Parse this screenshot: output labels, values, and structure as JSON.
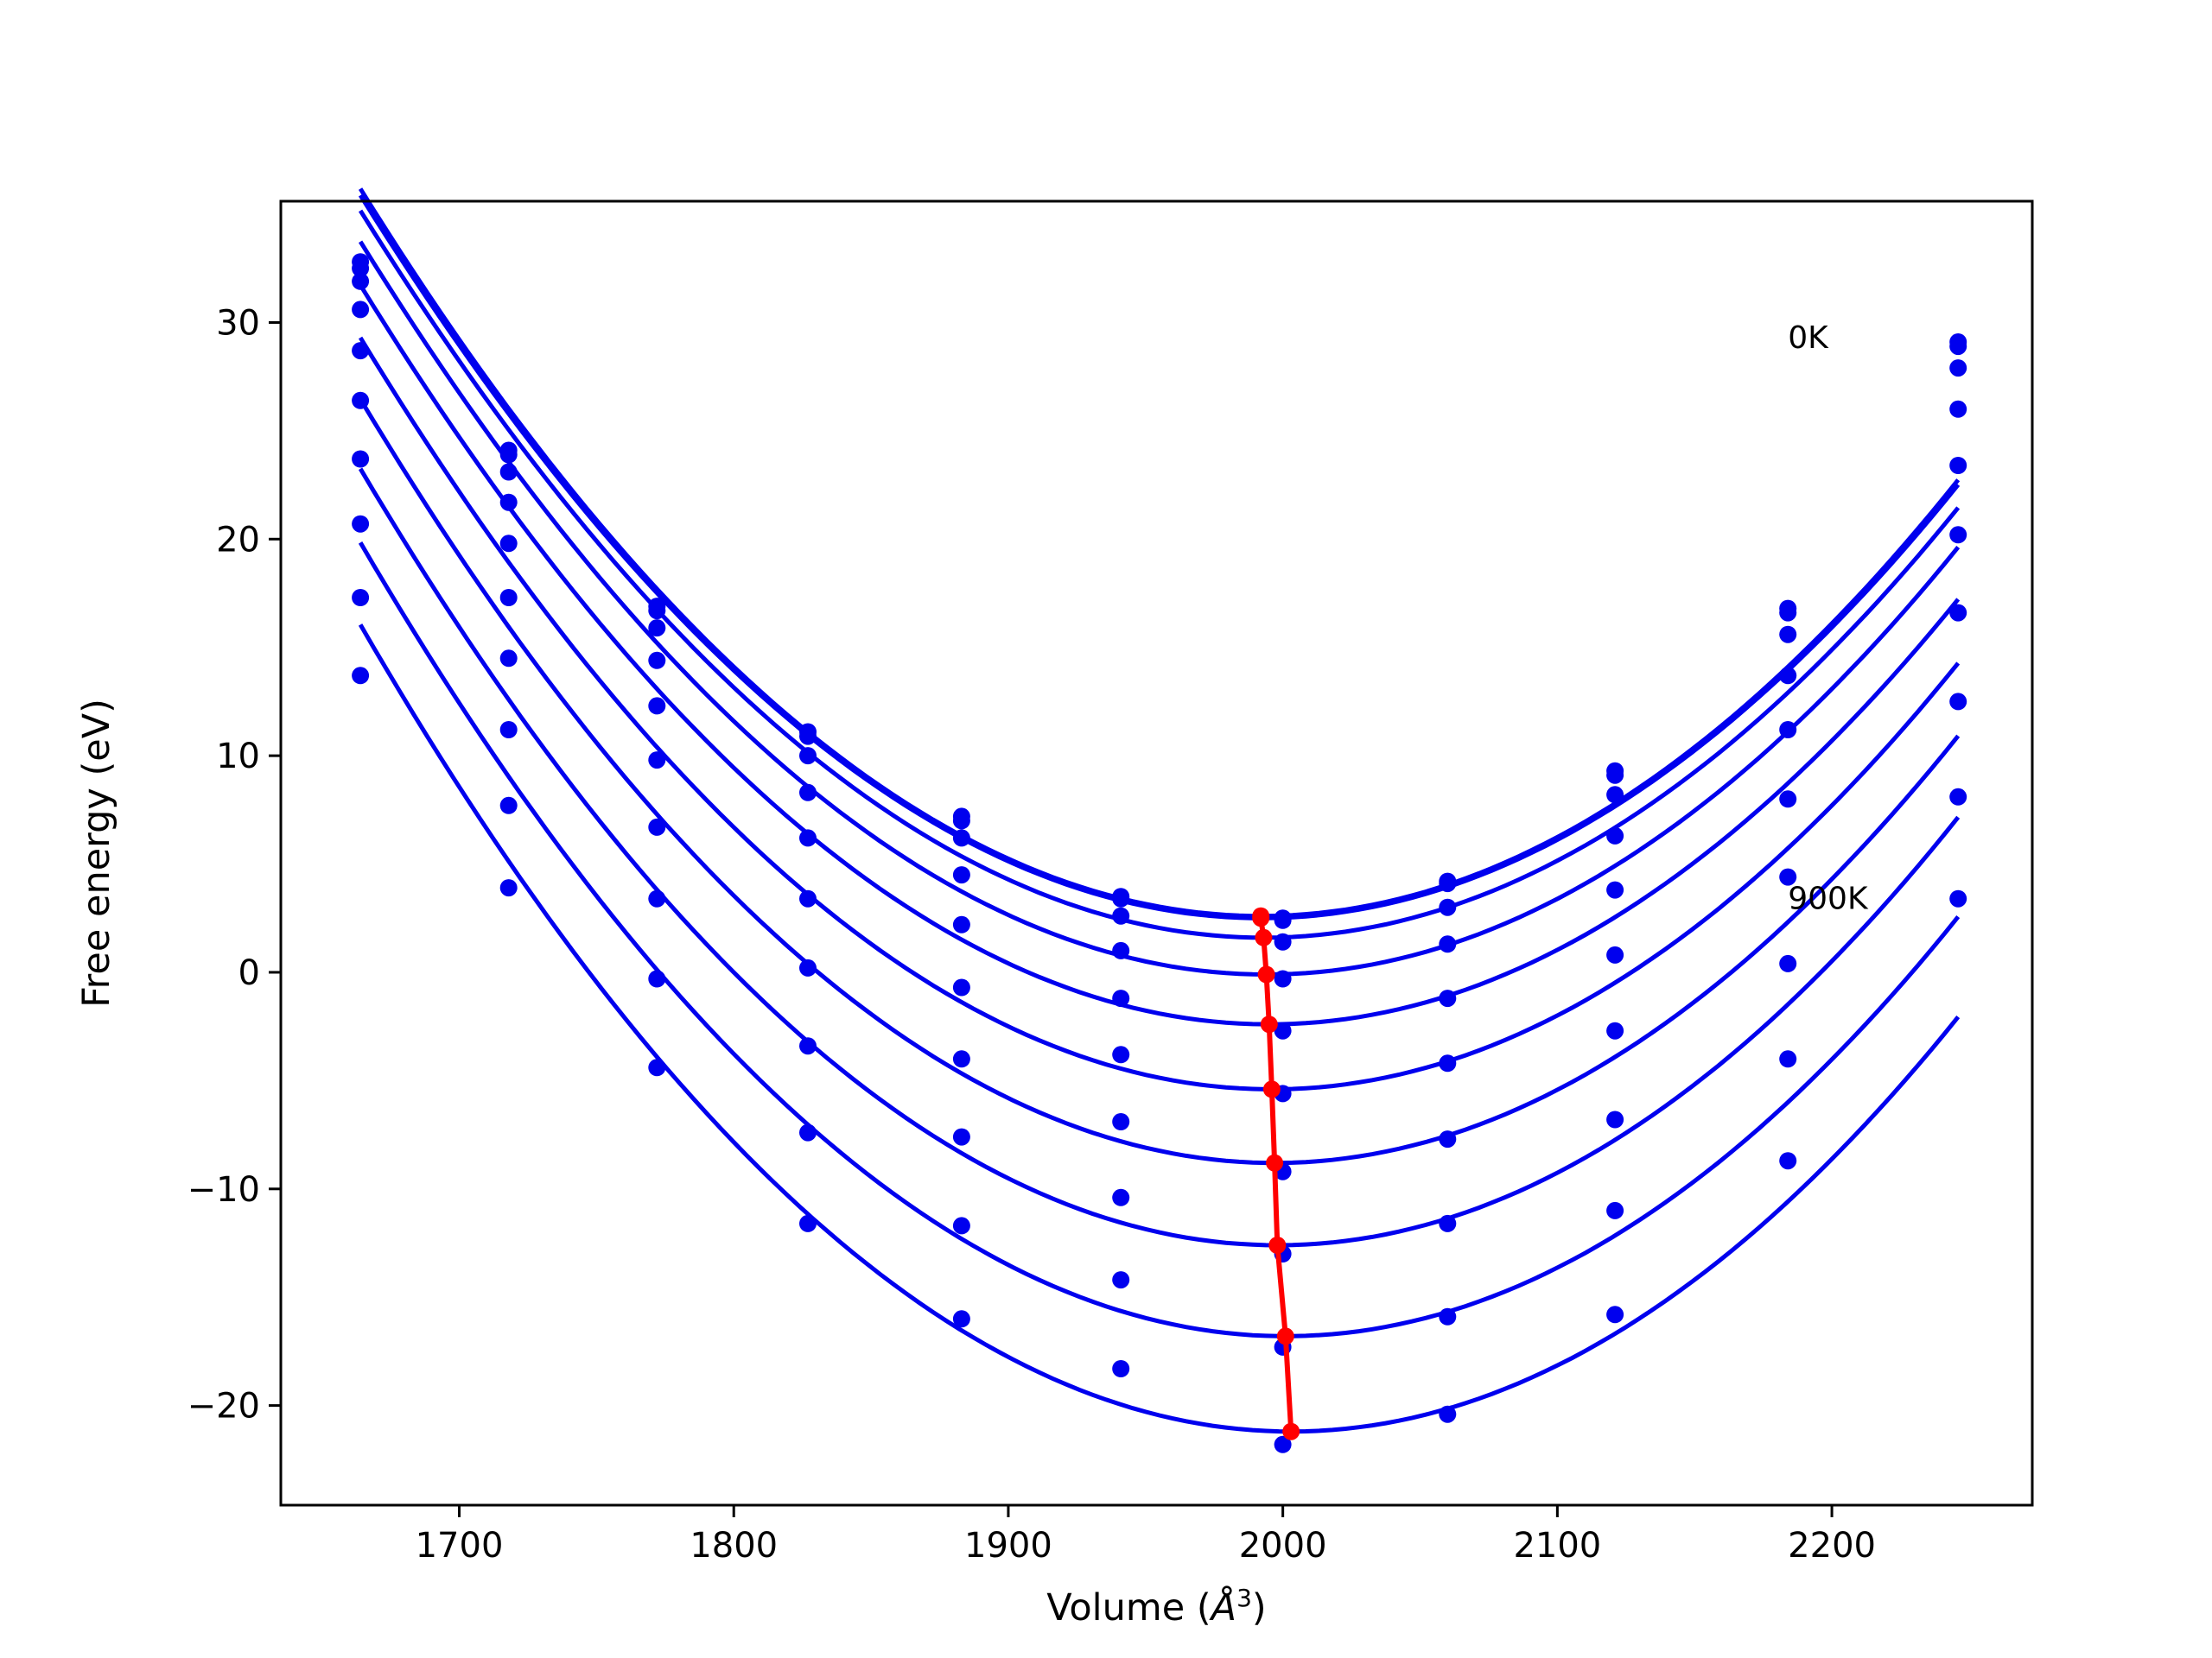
{
  "chart_data": {
    "type": "scatter",
    "title": "",
    "xlabel": "Volume (",
    "xlabel_symbol": "Å",
    "xlabel_power": "3",
    "xlabel_close": ")",
    "ylabel": "Free energy (eV)",
    "xlim": [
      1635,
      2273
    ],
    "ylim": [
      -24.6,
      35.6
    ],
    "x_ticks": [
      1700,
      1800,
      1900,
      2000,
      2100,
      2200
    ],
    "y_ticks": [
      -20,
      -10,
      0,
      10,
      20,
      30
    ],
    "x_tick_labels": [
      "1700",
      "1800",
      "1900",
      "2000",
      "2100",
      "2200"
    ],
    "y_tick_labels": [
      "−20",
      "−10",
      "0",
      "10",
      "20",
      "30"
    ],
    "grid": false,
    "legend": "none",
    "colors": {
      "curves": "#0000ee",
      "points": "#0000ee",
      "minima": "#ff0000",
      "frame": "#000000"
    },
    "annotations": [
      {
        "text": "0K",
        "x": 2184,
        "y": 29.3
      },
      {
        "text": "900K",
        "x": 2184,
        "y": 3.4
      }
    ],
    "volumes": [
      1664,
      1718,
      1772,
      1827,
      1883,
      1941,
      2000,
      2060,
      2121,
      2184,
      2246
    ],
    "series": [
      {
        "F0": 2.6,
        "V0": 1992,
        "points": [
          32.8,
          24.1,
          16.9,
          11.1,
          7.2,
          3.5,
          2.5,
          4.2,
          9.3,
          16.8,
          29.1
        ]
      },
      {
        "F0": 2.5,
        "V0": 1992,
        "points": [
          32.5,
          23.9,
          16.7,
          10.9,
          7.0,
          3.4,
          2.4,
          4.1,
          9.1,
          16.6,
          28.9
        ]
      },
      {
        "F0": 1.6,
        "V0": 1993,
        "points": [
          31.9,
          23.1,
          15.9,
          10.0,
          6.2,
          2.6,
          1.4,
          3.0,
          8.2,
          15.6,
          27.9
        ]
      },
      {
        "F0": -0.1,
        "V0": 1994,
        "points": [
          30.6,
          21.7,
          14.4,
          8.3,
          4.5,
          1.0,
          -0.3,
          1.3,
          6.3,
          13.7,
          26.0
        ]
      },
      {
        "F0": -2.4,
        "V0": 1995,
        "points": [
          28.7,
          19.8,
          12.3,
          6.2,
          2.2,
          -1.2,
          -2.7,
          -1.2,
          3.8,
          11.2,
          23.4
        ]
      },
      {
        "F0": -5.4,
        "V0": 1996,
        "points": [
          26.4,
          17.3,
          9.8,
          3.4,
          -0.7,
          -3.8,
          -5.6,
          -4.2,
          0.8,
          8.0,
          20.2
        ]
      },
      {
        "F0": -8.8,
        "V0": 1997,
        "points": [
          23.7,
          14.5,
          6.7,
          0.2,
          -4.0,
          -6.9,
          -9.2,
          -7.7,
          -2.7,
          4.4,
          16.6
        ]
      },
      {
        "F0": -12.6,
        "V0": 1998,
        "points": [
          20.7,
          11.2,
          3.4,
          -3.4,
          -7.6,
          -10.4,
          -13.0,
          -11.6,
          -6.8,
          0.4,
          12.5
        ]
      },
      {
        "F0": -16.8,
        "V0": 2001,
        "points": [
          17.3,
          7.7,
          -0.3,
          -7.4,
          -11.7,
          -14.2,
          -17.3,
          -15.9,
          -11.0,
          -4.0,
          8.1
        ]
      },
      {
        "F0": -21.2,
        "V0": 2003,
        "points": [
          13.7,
          3.9,
          -4.4,
          -11.6,
          -16.0,
          -18.3,
          -21.8,
          -20.4,
          -15.8,
          -8.7,
          3.4
        ]
      }
    ]
  }
}
